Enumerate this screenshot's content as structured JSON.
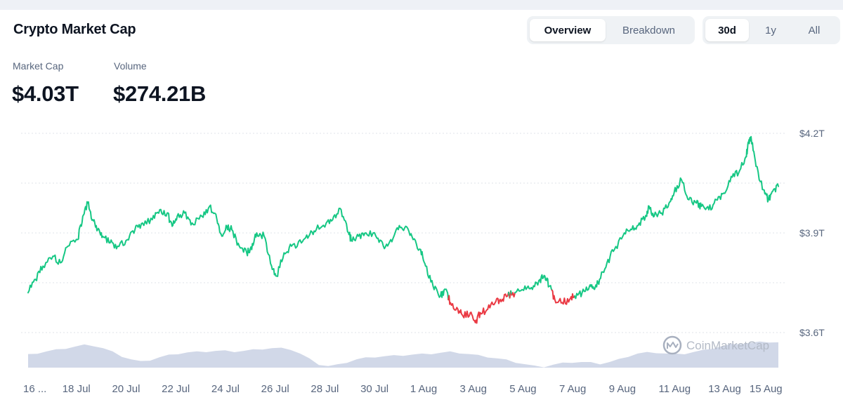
{
  "header": {
    "title": "Crypto Market Cap",
    "view_tabs": [
      {
        "label": "Overview",
        "active": true
      },
      {
        "label": "Breakdown",
        "active": false
      }
    ],
    "range_tabs": [
      {
        "label": "30d",
        "active": true
      },
      {
        "label": "1y",
        "active": false
      },
      {
        "label": "All",
        "active": false
      }
    ]
  },
  "stats": {
    "market_cap": {
      "label": "Market Cap",
      "value": "$4.03T"
    },
    "volume": {
      "label": "Volume",
      "value": "$274.21B"
    }
  },
  "watermark": "CoinMarketCap",
  "colors": {
    "up": "#16c784",
    "down": "#ea3943",
    "volume": "#c9d1e4",
    "grid": "#dfe3ea"
  },
  "chart_data": {
    "type": "line",
    "y_axis": {
      "ticks": [
        "$4.2T",
        "$3.9T",
        "$3.6T"
      ],
      "tick_values": [
        4.2,
        3.9,
        3.6
      ],
      "range": [
        3.6,
        4.2
      ],
      "position": "right",
      "unit": "trillion USD"
    },
    "x_axis": {
      "ticks": [
        "16 ...",
        "18 Jul",
        "20 Jul",
        "22 Jul",
        "24 Jul",
        "26 Jul",
        "28 Jul",
        "30 Jul",
        "1 Aug",
        "3 Aug",
        "5 Aug",
        "7 Aug",
        "9 Aug",
        "11 Aug",
        "13 Aug",
        "15 Aug"
      ],
      "tick_days": [
        0,
        2,
        4,
        6,
        8,
        10,
        12,
        14,
        16,
        18,
        20,
        22,
        24,
        26,
        28,
        30
      ]
    },
    "baseline": 3.9,
    "series": [
      {
        "x": [
          0,
          0.3,
          0.6,
          1.0,
          1.3,
          1.6,
          2.0,
          2.2,
          2.4,
          2.6,
          2.8,
          3.0,
          3.3,
          3.6,
          4.0,
          4.3,
          4.6,
          5.0,
          5.3,
          5.6,
          5.8,
          6.0,
          6.3,
          6.6,
          7.0,
          7.3,
          7.6,
          7.8,
          8.0,
          8.2,
          8.5,
          8.8,
          9.0,
          9.2,
          9.5,
          9.8,
          10.0,
          10.3,
          10.6,
          11.0,
          11.3,
          11.6,
          12.0,
          12.3,
          12.6,
          12.9,
          13.0,
          13.3,
          13.6,
          14.0,
          14.3,
          14.6,
          14.9,
          15.2,
          15.5,
          15.8,
          16.0,
          16.3,
          16.6,
          16.8,
          17.0,
          17.3,
          17.5,
          17.8,
          18.0,
          18.2,
          18.5,
          18.8,
          19.0,
          19.3,
          19.6,
          20.0,
          20.3,
          20.6,
          20.8,
          21.0,
          21.2,
          21.5,
          21.8,
          22.0,
          22.3,
          22.6,
          22.8,
          23.0,
          23.3,
          23.6,
          24.0,
          24.3,
          24.6,
          24.9,
          25.0,
          25.2,
          25.5,
          25.8,
          26.0,
          26.3,
          26.6,
          26.9,
          27.1,
          27.4,
          27.7,
          28.0,
          28.3,
          28.6,
          28.9,
          29.0,
          29.1,
          29.3,
          29.6,
          29.8,
          30.0,
          30.2
        ],
        "y": [
          3.72,
          3.76,
          3.8,
          3.83,
          3.81,
          3.86,
          3.88,
          3.95,
          3.99,
          3.94,
          3.91,
          3.89,
          3.87,
          3.86,
          3.88,
          3.91,
          3.93,
          3.94,
          3.97,
          3.96,
          3.92,
          3.95,
          3.96,
          3.93,
          3.95,
          3.98,
          3.94,
          3.89,
          3.92,
          3.91,
          3.86,
          3.84,
          3.85,
          3.9,
          3.89,
          3.8,
          3.77,
          3.84,
          3.86,
          3.87,
          3.89,
          3.91,
          3.93,
          3.95,
          3.97,
          3.9,
          3.88,
          3.89,
          3.9,
          3.89,
          3.86,
          3.88,
          3.91,
          3.92,
          3.88,
          3.85,
          3.8,
          3.74,
          3.71,
          3.73,
          3.69,
          3.67,
          3.65,
          3.66,
          3.63,
          3.66,
          3.67,
          3.69,
          3.7,
          3.71,
          3.72,
          3.74,
          3.73,
          3.76,
          3.77,
          3.74,
          3.7,
          3.69,
          3.7,
          3.71,
          3.72,
          3.74,
          3.73,
          3.76,
          3.81,
          3.85,
          3.9,
          3.91,
          3.93,
          3.95,
          3.98,
          3.95,
          3.96,
          3.99,
          4.02,
          4.06,
          4.0,
          3.99,
          3.98,
          3.97,
          4.0,
          4.02,
          4.07,
          4.08,
          4.13,
          4.17,
          4.19,
          4.1,
          4.03,
          4.0,
          4.03,
          4.04
        ]
      }
    ],
    "volume_profile": [
      0.48,
      0.54,
      0.6,
      0.66,
      0.72,
      0.78,
      0.84,
      0.82,
      0.72,
      0.58,
      0.42,
      0.3,
      0.22,
      0.28,
      0.38,
      0.46,
      0.52,
      0.56,
      0.58,
      0.6,
      0.62,
      0.62,
      0.6,
      0.62,
      0.66,
      0.7,
      0.72,
      0.72,
      0.68,
      0.52,
      0.32,
      0.12,
      0.05,
      0.1,
      0.2,
      0.3,
      0.36,
      0.4,
      0.42,
      0.44,
      0.46,
      0.48,
      0.5,
      0.52,
      0.55,
      0.58,
      0.55,
      0.5,
      0.45,
      0.4,
      0.34,
      0.28,
      0.2,
      0.12,
      0.05,
      0.03,
      0.1,
      0.16,
      0.2,
      0.2,
      0.18,
      0.14,
      0.2,
      0.3,
      0.42,
      0.52,
      0.56,
      0.56,
      0.52,
      0.5,
      0.52,
      0.58,
      0.64,
      0.72,
      0.8,
      0.86,
      0.9,
      0.92,
      0.95,
      0.96,
      0.94
    ]
  }
}
